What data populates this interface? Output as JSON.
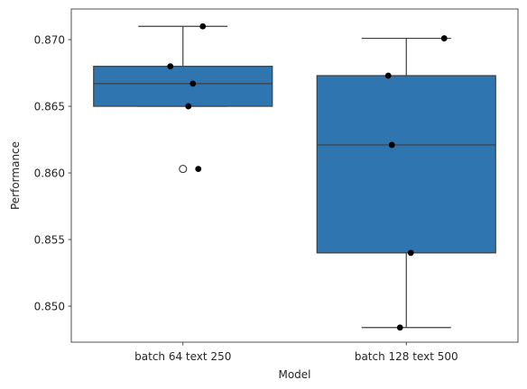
{
  "chart_data": {
    "type": "box",
    "title": "",
    "xlabel": "Model",
    "ylabel": "Performance",
    "ylim": [
      0.8473,
      0.8723
    ],
    "yticks": [
      0.85,
      0.855,
      0.86,
      0.865,
      0.87
    ],
    "ytick_labels": [
      "0.850",
      "0.855",
      "0.860",
      "0.865",
      "0.870"
    ],
    "categories": [
      "batch 64 text 250",
      "batch 128 text 500"
    ],
    "box_color": "#2f76b0",
    "point_color": "#000000",
    "grid": false,
    "boxes": [
      {
        "category": "batch 64 text 250",
        "whisker_low": 0.865,
        "q1": 0.865,
        "median": 0.8667,
        "q3": 0.868,
        "whisker_high": 0.871,
        "outliers": [
          0.8603
        ],
        "points": [
          0.871,
          0.868,
          0.8667,
          0.865,
          0.8603
        ]
      },
      {
        "category": "batch 128 text 500",
        "whisker_low": 0.8484,
        "q1": 0.854,
        "median": 0.8621,
        "q3": 0.8673,
        "whisker_high": 0.8701,
        "outliers": [],
        "points": [
          0.8701,
          0.8673,
          0.8621,
          0.854,
          0.8484
        ]
      }
    ]
  }
}
